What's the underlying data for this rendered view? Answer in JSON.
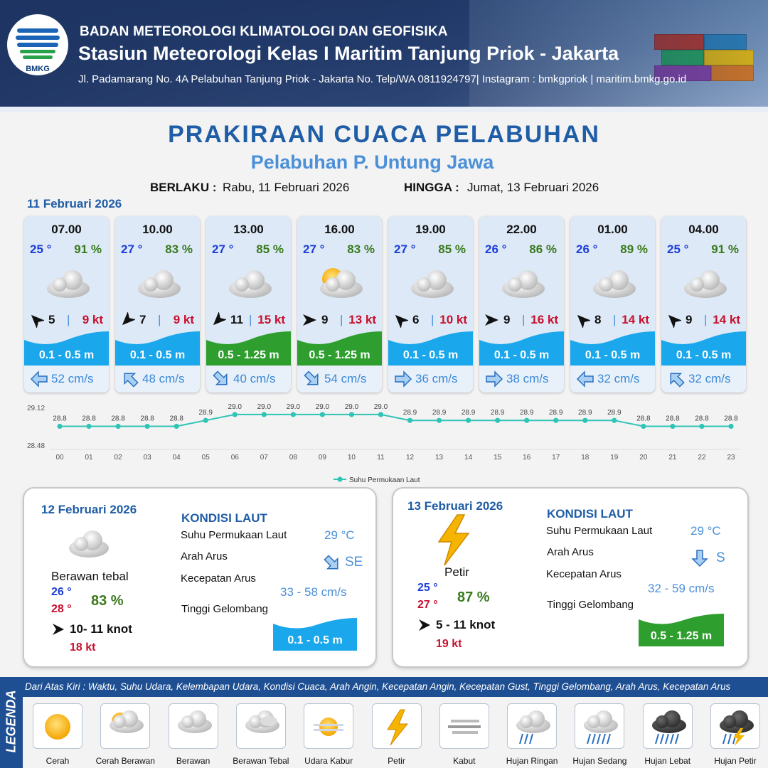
{
  "header": {
    "org": "BADAN METEOROLOGI KLIMATOLOGI DAN GEOFISIKA",
    "station": "Stasiun Meteorologi Kelas I Maritim Tanjung Priok - Jakarta",
    "address": "Jl. Padamarang No. 4A Pelabuhan Tanjung Priok - Jakarta No. Telp/WA 0811924797| Instagram : bmkgpriok | maritim.bmkg.go.id",
    "logo_text": "BMKG"
  },
  "title": "PRAKIRAAN CUACA PELABUHAN",
  "subtitle": "Pelabuhan P. Untung Jawa",
  "validity": {
    "from_label": "BERLAKU :",
    "from_value": "Rabu, 11 Februari 2026",
    "to_label": "HINGGA :",
    "to_value": "Jumat, 13 Februari 2026"
  },
  "day1": {
    "date": "11 Februari 2026",
    "forecasts": [
      {
        "time": "07.00",
        "temp": "25 °",
        "humidity": "91 %",
        "condition": "Berawan Tebal",
        "wind_dir": "NW",
        "wind_speed": "5",
        "gust": "9 kt",
        "wave": "0.1 - 0.5 m",
        "wave_class": "low",
        "current_dir": "W",
        "current_speed": "52 cm/s"
      },
      {
        "time": "10.00",
        "temp": "27 °",
        "humidity": "83 %",
        "condition": "Berawan Tebal",
        "wind_dir": "SW",
        "wind_speed": "7",
        "gust": "9 kt",
        "wave": "0.1 - 0.5 m",
        "wave_class": "low",
        "current_dir": "NW",
        "current_speed": "48 cm/s"
      },
      {
        "time": "13.00",
        "temp": "27 °",
        "humidity": "85 %",
        "condition": "Berawan Tebal",
        "wind_dir": "SW",
        "wind_speed": "11",
        "gust": "15 kt",
        "wave": "0.5 - 1.25 m",
        "wave_class": "moderate",
        "current_dir": "SE",
        "current_speed": "40 cm/s"
      },
      {
        "time": "16.00",
        "temp": "27 °",
        "humidity": "83 %",
        "condition": "Cerah Berawan",
        "wind_dir": "E",
        "wind_speed": "9",
        "gust": "13 kt",
        "wave": "0.5 - 1.25 m",
        "wave_class": "moderate",
        "current_dir": "SE",
        "current_speed": "54 cm/s"
      },
      {
        "time": "19.00",
        "temp": "27 °",
        "humidity": "85 %",
        "condition": "Berawan Tebal",
        "wind_dir": "NW",
        "wind_speed": "6",
        "gust": "10 kt",
        "wave": "0.1 - 0.5 m",
        "wave_class": "low",
        "current_dir": "E",
        "current_speed": "36 cm/s"
      },
      {
        "time": "22.00",
        "temp": "26 °",
        "humidity": "86 %",
        "condition": "Berawan Tebal",
        "wind_dir": "E",
        "wind_speed": "9",
        "gust": "16 kt",
        "wave": "0.1 - 0.5 m",
        "wave_class": "low",
        "current_dir": "E",
        "current_speed": "38 cm/s"
      },
      {
        "time": "01.00",
        "temp": "26 °",
        "humidity": "89 %",
        "condition": "Berawan Tebal",
        "wind_dir": "NW",
        "wind_speed": "8",
        "gust": "14 kt",
        "wave": "0.1 - 0.5 m",
        "wave_class": "low",
        "current_dir": "W",
        "current_speed": "32 cm/s"
      },
      {
        "time": "04.00",
        "temp": "25 °",
        "humidity": "91 %",
        "condition": "Berawan Tebal",
        "wind_dir": "NW",
        "wind_speed": "9",
        "gust": "14 kt",
        "wave": "0.1 - 0.5 m",
        "wave_class": "low",
        "current_dir": "NW",
        "current_speed": "32 cm/s"
      }
    ]
  },
  "chart_data": {
    "type": "line",
    "x": [
      "00",
      "01",
      "02",
      "03",
      "04",
      "05",
      "06",
      "07",
      "08",
      "09",
      "10",
      "11",
      "12",
      "13",
      "14",
      "15",
      "16",
      "17",
      "18",
      "19",
      "20",
      "21",
      "22",
      "23"
    ],
    "series": [
      {
        "name": "Suhu Permukaan Laut",
        "values": [
          28.8,
          28.8,
          28.8,
          28.8,
          28.8,
          28.9,
          29.0,
          29.0,
          29.0,
          29.0,
          29.0,
          29.0,
          28.9,
          28.9,
          28.9,
          28.9,
          28.9,
          28.9,
          28.9,
          28.9,
          28.8,
          28.8,
          28.8,
          28.8
        ],
        "color": "#2fc4b6"
      }
    ],
    "y_ticks": [
      "29.12",
      "28.48"
    ],
    "ylim": [
      28.48,
      29.12
    ],
    "legend_position": "bottom-center"
  },
  "day2": {
    "date": "12 Februari 2026",
    "condition": "Berawan tebal",
    "temp_min": "26 °",
    "temp_max": "28 °",
    "humidity": "83 %",
    "wind": "10- 11 knot",
    "gust": "18 kt",
    "kondisi_label": "KONDISI LAUT",
    "sst_label": "Suhu Permukaan Laut",
    "sst": "29 °C",
    "current_dir_label": "Arah Arus",
    "current_dir": "SE",
    "current_speed_label": "Kecepatan Arus",
    "current_speed": "33  - 58 cm/s",
    "wave_label": "Tinggi Gelombang",
    "wave": "0.1 - 0.5 m",
    "wave_class": "low"
  },
  "day3": {
    "date": "13 Februari 2026",
    "condition": "Petir",
    "temp_min": "25 °",
    "temp_max": "27 °",
    "humidity": "87 %",
    "wind": "5  - 11 knot",
    "gust": "19 kt",
    "kondisi_label": "KONDISI LAUT",
    "sst_label": "Suhu Permukaan Laut",
    "sst": "29 °C",
    "current_dir_label": "Arah Arus",
    "current_dir": "S",
    "current_speed_label": "Kecepatan Arus",
    "current_speed": "32  - 59 cm/s",
    "wave_label": "Tinggi Gelombang",
    "wave": "0.5 - 1.25 m",
    "wave_class": "moderate"
  },
  "legend": {
    "title": "LEGENDA",
    "description": "Dari Atas Kiri : Waktu, Suhu Udara, Kelembapan Udara, Kondisi Cuaca, Arah Angin, Kecepatan Angin, Kecepatan Gust, Tinggi Gelombang, Arah Arus, Kecepatan Arus",
    "items": [
      {
        "label": "Cerah",
        "icon": "sun-icon"
      },
      {
        "label": "Cerah Berawan",
        "icon": "sun-cloud-icon"
      },
      {
        "label": "Berawan",
        "icon": "cloud-icon"
      },
      {
        "label": "Berawan Tebal",
        "icon": "thick-cloud-icon"
      },
      {
        "label": "Udara Kabur",
        "icon": "haze-icon"
      },
      {
        "label": "Petir",
        "icon": "lightning-icon"
      },
      {
        "label": "Kabut",
        "icon": "fog-icon"
      },
      {
        "label": "Hujan Ringan",
        "icon": "light-rain-icon"
      },
      {
        "label": "Hujan Sedang",
        "icon": "moderate-rain-icon"
      },
      {
        "label": "Hujan Lebat",
        "icon": "heavy-rain-icon"
      },
      {
        "label": "Hujan Petir",
        "icon": "thunderstorm-icon"
      }
    ]
  },
  "colors": {
    "header_blue": "#1f4f93",
    "title_blue": "#1f5da6",
    "wave_low": "#1aa7ec",
    "wave_moderate": "#2e9e2e",
    "temp_blue": "#1c3ed8",
    "humidity_green": "#3a7a1e",
    "gust_red": "#c8102e"
  }
}
